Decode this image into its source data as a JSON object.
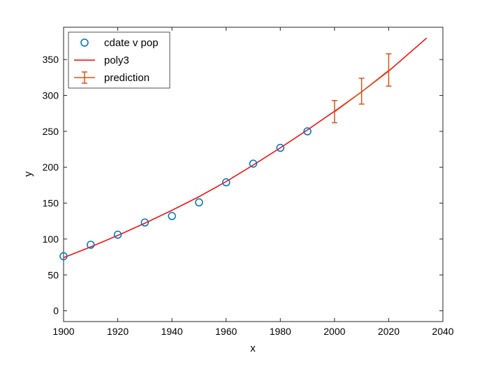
{
  "chart_data": {
    "type": "scatter",
    "xlabel": "x",
    "ylabel": "y",
    "xlim": [
      1900,
      2040
    ],
    "ylim": [
      -15,
      395
    ],
    "xticks": [
      1900,
      1920,
      1940,
      1960,
      1980,
      2000,
      2020,
      2040
    ],
    "yticks": [
      0,
      50,
      100,
      150,
      200,
      250,
      300,
      350
    ],
    "grid": false,
    "legend_position": "top-left",
    "series": [
      {
        "name": "cdate v pop",
        "kind": "scatter",
        "marker": "open-circle",
        "color": "#0072BD",
        "x": [
          1900,
          1910,
          1920,
          1930,
          1940,
          1950,
          1960,
          1970,
          1980,
          1990
        ],
        "y": [
          76,
          92,
          106,
          123,
          132,
          151,
          179,
          205,
          227,
          250
        ]
      },
      {
        "name": "poly3",
        "kind": "line",
        "color": "#FF0000",
        "x": [
          1900,
          1910,
          1920,
          1930,
          1940,
          1950,
          1960,
          1970,
          1980,
          1990,
          2000,
          2010,
          2020,
          2034
        ],
        "y": [
          74,
          89,
          105,
          122,
          140,
          159,
          180,
          203,
          227,
          252,
          278,
          305,
          334,
          380
        ]
      },
      {
        "name": "prediction",
        "kind": "errorbar",
        "color": "#D95319",
        "x": [
          2000,
          2010,
          2020
        ],
        "y": [
          277,
          305,
          335
        ],
        "lower": [
          262,
          288,
          313
        ],
        "upper": [
          293,
          324,
          358
        ]
      }
    ]
  }
}
